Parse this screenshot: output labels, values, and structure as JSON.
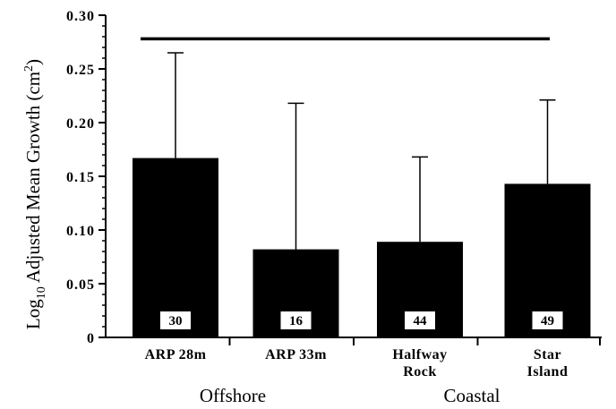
{
  "chart_data": {
    "type": "bar",
    "categories": [
      {
        "line1": "ARP  28m",
        "line2": ""
      },
      {
        "line1": "ARP  33m",
        "line2": ""
      },
      {
        "line1": "Halfway",
        "line2": "Rock"
      },
      {
        "line1": "Star",
        "line2": "Island"
      }
    ],
    "values": [
      0.167,
      0.082,
      0.089,
      0.143
    ],
    "error_upper": [
      0.265,
      0.218,
      0.168,
      0.221
    ],
    "sample_sizes": [
      "30",
      "16",
      "44",
      "49"
    ],
    "groups": [
      {
        "label": "Offshore",
        "members": [
          0,
          1
        ]
      },
      {
        "label": "Coastal",
        "members": [
          2,
          3
        ]
      }
    ],
    "ylabel": {
      "pre": "Log",
      "sub": "10",
      "mid": " Adjusted Mean Growth (cm",
      "sup": "2",
      "post": ")"
    },
    "ylim": [
      0,
      0.3
    ],
    "yticks": [
      "0",
      "0.05",
      "0.10",
      "0.15",
      "0.20",
      "0.25",
      "0.30"
    ],
    "reference_line": {
      "y": 0.278
    },
    "colors": {
      "bar": "#000000",
      "background": "#ffffff"
    }
  }
}
